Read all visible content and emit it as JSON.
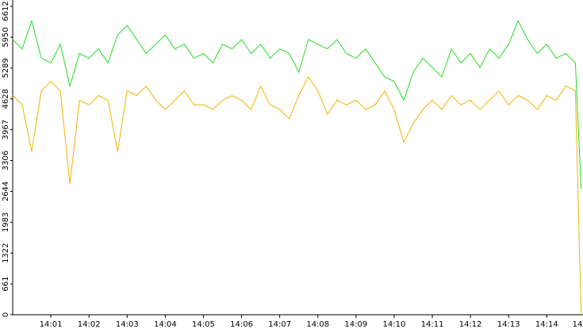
{
  "chart_data": {
    "type": "line",
    "x": [
      0,
      0.25,
      0.5,
      0.75,
      1,
      1.25,
      1.5,
      1.75,
      2,
      2.25,
      2.5,
      2.75,
      3,
      3.25,
      3.5,
      3.75,
      4,
      4.25,
      4.5,
      4.75,
      5,
      5.25,
      5.5,
      5.75,
      6,
      6.25,
      6.5,
      6.75,
      7,
      7.25,
      7.5,
      7.75,
      8,
      8.25,
      8.5,
      8.75,
      9,
      9.25,
      9.5,
      9.75,
      10,
      10.25,
      10.5,
      10.75,
      11,
      11.25,
      11.5,
      11.75,
      12,
      12.25,
      12.5,
      12.75,
      13,
      13.25,
      13.5,
      13.75,
      14,
      14.25,
      14.5,
      14.75,
      14.9
    ],
    "series": [
      {
        "color": "#22dd22",
        "values": [
          5900,
          5700,
          6300,
          5500,
          5400,
          5800,
          4900,
          5600,
          5500,
          5700,
          5400,
          6000,
          6200,
          5900,
          5600,
          5800,
          6000,
          5700,
          5800,
          5500,
          5600,
          5400,
          5800,
          5700,
          5900,
          5600,
          5800,
          5500,
          5700,
          5600,
          5200,
          5900,
          5800,
          5700,
          5900,
          5600,
          5500,
          5700,
          5400,
          5100,
          5000,
          4600,
          5200,
          5500,
          5300,
          5100,
          5700,
          5400,
          5600,
          5300,
          5700,
          5500,
          5800,
          6300,
          5900,
          5600,
          5800,
          5500,
          5600,
          5400,
          2700
        ]
      },
      {
        "color": "#f0b400",
        "values": [
          4700,
          4500,
          3500,
          4800,
          5000,
          4800,
          2800,
          4600,
          4500,
          4700,
          4600,
          3500,
          4800,
          4700,
          4900,
          4600,
          4400,
          4600,
          4800,
          4500,
          4500,
          4400,
          4600,
          4700,
          4600,
          4400,
          4900,
          4500,
          4400,
          4200,
          4700,
          5100,
          4800,
          4300,
          4600,
          4500,
          4600,
          4400,
          4500,
          4800,
          4400,
          3700,
          4100,
          4400,
          4600,
          4400,
          4700,
          4500,
          4600,
          4400,
          4600,
          4800,
          4500,
          4700,
          4600,
          4400,
          4700,
          4600,
          4900,
          4800,
          0
        ]
      }
    ],
    "xlim": [
      0,
      14.95
    ],
    "xticks": [
      {
        "value": 1,
        "label": "14:01"
      },
      {
        "value": 2,
        "label": "14:02"
      },
      {
        "value": 3,
        "label": "14:03"
      },
      {
        "value": 4,
        "label": "14:04"
      },
      {
        "value": 5,
        "label": "14:05"
      },
      {
        "value": 6,
        "label": "14:06"
      },
      {
        "value": 7,
        "label": "14:07"
      },
      {
        "value": 8,
        "label": "14:08"
      },
      {
        "value": 9,
        "label": "14:09"
      },
      {
        "value": 10,
        "label": "14:10"
      },
      {
        "value": 11,
        "label": "14:11"
      },
      {
        "value": 12,
        "label": "14:12"
      },
      {
        "value": 13,
        "label": "14:13"
      },
      {
        "value": 14,
        "label": "14:14"
      },
      {
        "value": 15,
        "label": "14"
      }
    ],
    "ylim": [
      0,
      6612
    ],
    "yticks": [
      0,
      661,
      1322,
      1983,
      2644,
      3306,
      3967,
      4628,
      5289,
      5950,
      6612
    ]
  }
}
